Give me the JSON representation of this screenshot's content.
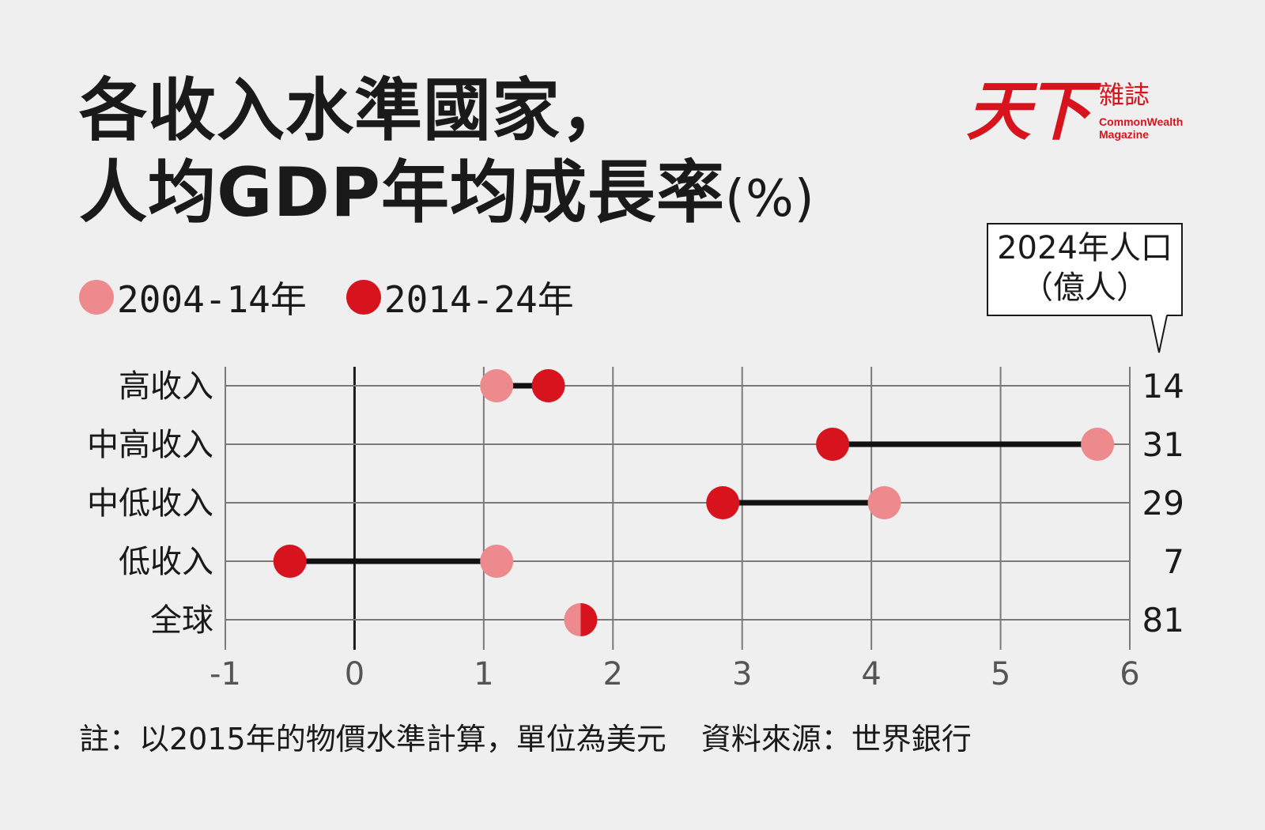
{
  "title": {
    "line1": "各收入水準國家，",
    "line2": "人均GDP年均成長率",
    "unit": "(%)"
  },
  "logo": {
    "main": "天下",
    "sub": "雜誌",
    "en1": "CommonWealth",
    "en2": "Magazine"
  },
  "population_header": {
    "line1": "2024年人口",
    "line2": "（億人）"
  },
  "note": {
    "text": "註：以2015年的物價水準計算，單位為美元",
    "source": "資料來源：世界銀行"
  },
  "chart_data": {
    "type": "dumbbell",
    "categories": [
      "高收入",
      "中高收入",
      "中低收入",
      "低收入",
      "全球"
    ],
    "series": [
      {
        "name": "2004-14年",
        "color": "#ed8a8e",
        "values": [
          1.1,
          5.75,
          4.1,
          1.1,
          1.75
        ]
      },
      {
        "name": "2014-24年",
        "color": "#d7141d",
        "values": [
          1.5,
          3.7,
          2.85,
          -0.5,
          1.75
        ]
      }
    ],
    "population": [
      "14",
      "31",
      "29",
      "7",
      "81"
    ],
    "x_ticks": [
      "-1",
      "0",
      "1",
      "2",
      "3",
      "4",
      "5",
      "6"
    ],
    "xlim": [
      -1,
      6
    ],
    "grid": true
  }
}
